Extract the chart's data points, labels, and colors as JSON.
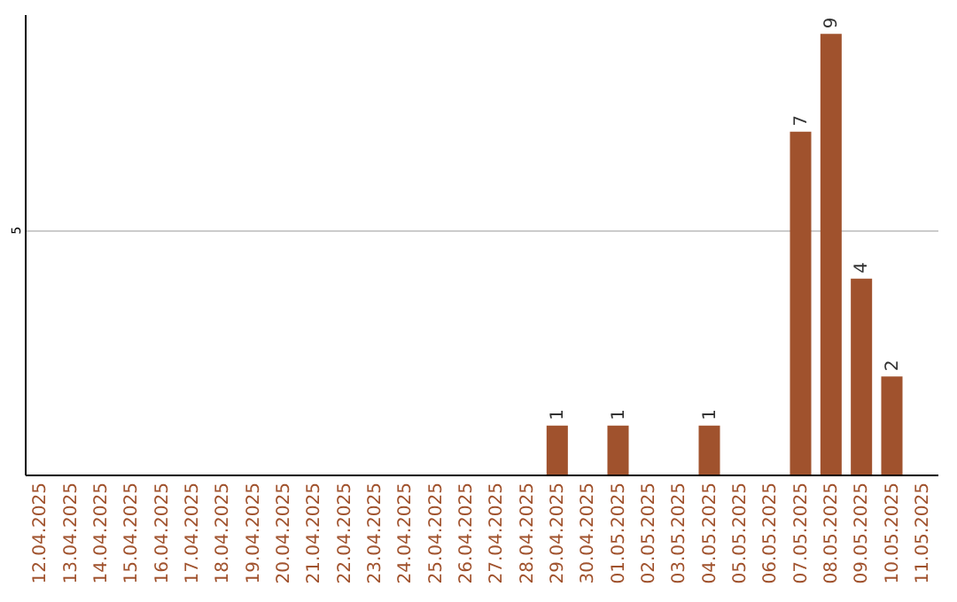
{
  "chart_data": {
    "type": "bar",
    "categories": [
      "12.04.2025",
      "13.04.2025",
      "14.04.2025",
      "15.04.2025",
      "16.04.2025",
      "17.04.2025",
      "18.04.2025",
      "19.04.2025",
      "20.04.2025",
      "21.04.2025",
      "22.04.2025",
      "23.04.2025",
      "24.04.2025",
      "25.04.2025",
      "26.04.2025",
      "27.04.2025",
      "28.04.2025",
      "29.04.2025",
      "30.04.2025",
      "01.05.2025",
      "02.05.2025",
      "03.05.2025",
      "04.05.2025",
      "05.05.2025",
      "06.05.2025",
      "07.05.2025",
      "08.05.2025",
      "09.05.2025",
      "10.05.2025",
      "11.05.2025"
    ],
    "values": [
      null,
      null,
      null,
      null,
      null,
      null,
      null,
      null,
      null,
      null,
      null,
      null,
      null,
      null,
      null,
      null,
      null,
      1,
      null,
      1,
      null,
      null,
      1,
      null,
      null,
      7,
      9,
      4,
      2,
      null
    ],
    "color": "#a0522d",
    "ylim": [
      0,
      9.4
    ],
    "yticks": [
      5
    ],
    "grid": "y",
    "data_labels": true
  }
}
